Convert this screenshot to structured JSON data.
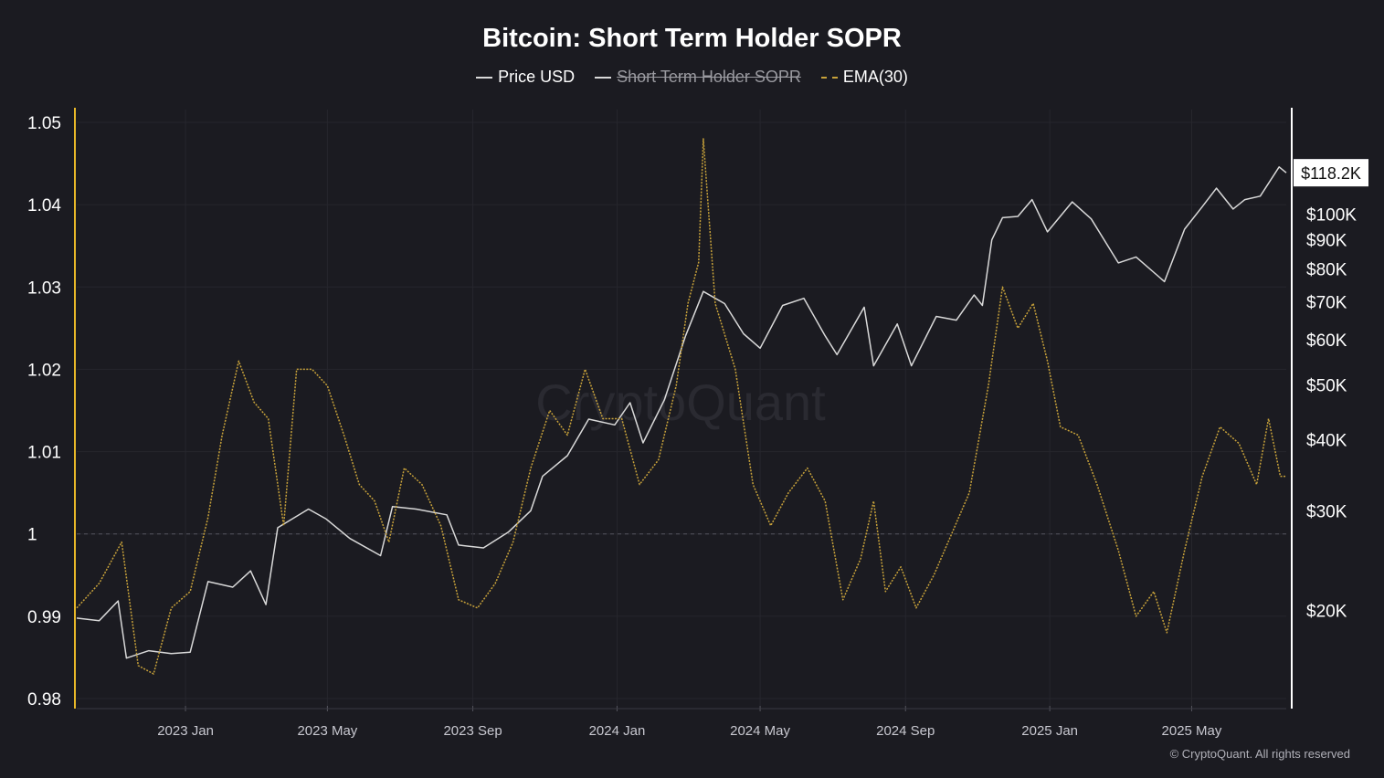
{
  "page": {
    "copyright": "© CryptoQuant. All rights reserved",
    "watermark": "CryptoQuant"
  },
  "chart_data": {
    "type": "line",
    "title": "Bitcoin: Short Term Holder SOPR",
    "legend": [
      {
        "name": "Price USD",
        "color": "#d9d9d9",
        "style": "solid",
        "hidden": false
      },
      {
        "name": "Short Term Holder SOPR",
        "color": "#d9d9d9",
        "style": "solid",
        "hidden": true
      },
      {
        "name": "EMA(30)",
        "color": "#c8a23a",
        "style": "dashed",
        "hidden": false
      }
    ],
    "legend_position": "top-center",
    "x_range": [
      "2022-10-01",
      "2025-07-20"
    ],
    "x_ticks": [
      {
        "date": "2023-01-01",
        "label": "2023 Jan"
      },
      {
        "date": "2023-05-01",
        "label": "2023 May"
      },
      {
        "date": "2023-09-01",
        "label": "2023 Sep"
      },
      {
        "date": "2024-01-01",
        "label": "2024 Jan"
      },
      {
        "date": "2024-05-01",
        "label": "2024 May"
      },
      {
        "date": "2024-09-01",
        "label": "2024 Sep"
      },
      {
        "date": "2025-01-01",
        "label": "2025 Jan"
      },
      {
        "date": "2025-05-01",
        "label": "2025 May"
      }
    ],
    "y_left": {
      "ylim": [
        0.98,
        1.05
      ],
      "ticks": [
        {
          "v": 1.05,
          "label": "1.05"
        },
        {
          "v": 1.04,
          "label": "1.04"
        },
        {
          "v": 1.03,
          "label": "1.03"
        },
        {
          "v": 1.02,
          "label": "1.02"
        },
        {
          "v": 1.01,
          "label": "1.01"
        },
        {
          "v": 1.0,
          "label": "1"
        },
        {
          "v": 0.99,
          "label": "0.99"
        },
        {
          "v": 0.98,
          "label": "0.98"
        }
      ],
      "reference_line": 1.0
    },
    "y_right": {
      "scale": "log",
      "ylim": [
        14000,
        145000
      ],
      "ticks": [
        {
          "v": 100000,
          "label": "$100K"
        },
        {
          "v": 90000,
          "label": "$90K"
        },
        {
          "v": 80000,
          "label": "$80K"
        },
        {
          "v": 70000,
          "label": "$70K"
        },
        {
          "v": 60000,
          "label": "$60K"
        },
        {
          "v": 50000,
          "label": "$50K"
        },
        {
          "v": 40000,
          "label": "$40K"
        },
        {
          "v": 30000,
          "label": "$30K"
        },
        {
          "v": 20000,
          "label": "$20K"
        }
      ],
      "current_value_label": "$118.2K"
    },
    "grid": true,
    "series": [
      {
        "name": "Price USD",
        "axis": "right",
        "color": "#d9d9d9",
        "points": [
          [
            "2022-10-01",
            19400
          ],
          [
            "2022-10-20",
            19200
          ],
          [
            "2022-11-05",
            20800
          ],
          [
            "2022-11-12",
            16500
          ],
          [
            "2022-12-01",
            17000
          ],
          [
            "2022-12-20",
            16800
          ],
          [
            "2023-01-05",
            16900
          ],
          [
            "2023-01-20",
            22500
          ],
          [
            "2023-02-10",
            22000
          ],
          [
            "2023-02-25",
            23500
          ],
          [
            "2023-03-10",
            20500
          ],
          [
            "2023-03-20",
            28000
          ],
          [
            "2023-04-15",
            30200
          ],
          [
            "2023-04-30",
            29000
          ],
          [
            "2023-05-20",
            26800
          ],
          [
            "2023-06-15",
            25000
          ],
          [
            "2023-06-25",
            30500
          ],
          [
            "2023-07-15",
            30200
          ],
          [
            "2023-08-10",
            29500
          ],
          [
            "2023-08-20",
            26100
          ],
          [
            "2023-09-10",
            25800
          ],
          [
            "2023-10-01",
            27500
          ],
          [
            "2023-10-20",
            30000
          ],
          [
            "2023-10-30",
            34500
          ],
          [
            "2023-11-20",
            37500
          ],
          [
            "2023-12-08",
            43500
          ],
          [
            "2023-12-30",
            42500
          ],
          [
            "2024-01-12",
            46500
          ],
          [
            "2024-01-23",
            39500
          ],
          [
            "2024-02-10",
            47000
          ],
          [
            "2024-02-28",
            61000
          ],
          [
            "2024-03-14",
            73000
          ],
          [
            "2024-04-01",
            69500
          ],
          [
            "2024-04-17",
            61500
          ],
          [
            "2024-05-01",
            58000
          ],
          [
            "2024-05-20",
            69000
          ],
          [
            "2024-06-07",
            71000
          ],
          [
            "2024-06-25",
            61000
          ],
          [
            "2024-07-05",
            56500
          ],
          [
            "2024-07-28",
            68500
          ],
          [
            "2024-08-05",
            54000
          ],
          [
            "2024-08-25",
            64000
          ],
          [
            "2024-09-06",
            54000
          ],
          [
            "2024-09-27",
            66000
          ],
          [
            "2024-10-14",
            65000
          ],
          [
            "2024-10-29",
            72000
          ],
          [
            "2024-11-05",
            69000
          ],
          [
            "2024-11-13",
            90000
          ],
          [
            "2024-11-22",
            98500
          ],
          [
            "2024-12-05",
            99000
          ],
          [
            "2024-12-17",
            106000
          ],
          [
            "2024-12-30",
            93000
          ],
          [
            "2025-01-20",
            105000
          ],
          [
            "2025-02-05",
            98000
          ],
          [
            "2025-02-28",
            82000
          ],
          [
            "2025-03-15",
            84000
          ],
          [
            "2025-04-08",
            76000
          ],
          [
            "2025-04-25",
            94000
          ],
          [
            "2025-05-10",
            103000
          ],
          [
            "2025-05-22",
            111000
          ],
          [
            "2025-06-05",
            102000
          ],
          [
            "2025-06-15",
            106000
          ],
          [
            "2025-06-28",
            107500
          ],
          [
            "2025-07-14",
            121000
          ],
          [
            "2025-07-20",
            118200
          ]
        ]
      },
      {
        "name": "EMA(30)",
        "axis": "left",
        "color": "#c8a23a",
        "points": [
          [
            "2022-10-01",
            0.991
          ],
          [
            "2022-10-20",
            0.994
          ],
          [
            "2022-11-08",
            0.999
          ],
          [
            "2022-11-22",
            0.984
          ],
          [
            "2022-12-05",
            0.983
          ],
          [
            "2022-12-20",
            0.991
          ],
          [
            "2023-01-05",
            0.993
          ],
          [
            "2023-01-20",
            1.002
          ],
          [
            "2023-02-01",
            1.012
          ],
          [
            "2023-02-15",
            1.021
          ],
          [
            "2023-02-28",
            1.016
          ],
          [
            "2023-03-12",
            1.014
          ],
          [
            "2023-03-25",
            1.001
          ],
          [
            "2023-04-05",
            1.02
          ],
          [
            "2023-04-18",
            1.02
          ],
          [
            "2023-05-01",
            1.018
          ],
          [
            "2023-05-15",
            1.012
          ],
          [
            "2023-05-28",
            1.006
          ],
          [
            "2023-06-10",
            1.004
          ],
          [
            "2023-06-22",
            0.999
          ],
          [
            "2023-07-05",
            1.008
          ],
          [
            "2023-07-20",
            1.006
          ],
          [
            "2023-08-05",
            1.001
          ],
          [
            "2023-08-20",
            0.992
          ],
          [
            "2023-09-05",
            0.991
          ],
          [
            "2023-09-20",
            0.994
          ],
          [
            "2023-10-05",
            0.999
          ],
          [
            "2023-10-20",
            1.008
          ],
          [
            "2023-11-05",
            1.015
          ],
          [
            "2023-11-20",
            1.012
          ],
          [
            "2023-12-05",
            1.02
          ],
          [
            "2023-12-20",
            1.014
          ],
          [
            "2024-01-05",
            1.014
          ],
          [
            "2024-01-20",
            1.006
          ],
          [
            "2024-02-05",
            1.009
          ],
          [
            "2024-02-20",
            1.018
          ],
          [
            "2024-03-01",
            1.028
          ],
          [
            "2024-03-10",
            1.033
          ],
          [
            "2024-03-14",
            1.048
          ],
          [
            "2024-03-24",
            1.028
          ],
          [
            "2024-04-10",
            1.02
          ],
          [
            "2024-04-25",
            1.006
          ],
          [
            "2024-05-10",
            1.001
          ],
          [
            "2024-05-25",
            1.005
          ],
          [
            "2024-06-10",
            1.008
          ],
          [
            "2024-06-25",
            1.004
          ],
          [
            "2024-07-10",
            0.992
          ],
          [
            "2024-07-25",
            0.997
          ],
          [
            "2024-08-05",
            1.004
          ],
          [
            "2024-08-15",
            0.993
          ],
          [
            "2024-08-28",
            0.996
          ],
          [
            "2024-09-10",
            0.991
          ],
          [
            "2024-09-25",
            0.995
          ],
          [
            "2024-10-10",
            1.0
          ],
          [
            "2024-10-25",
            1.005
          ],
          [
            "2024-11-10",
            1.018
          ],
          [
            "2024-11-22",
            1.03
          ],
          [
            "2024-12-05",
            1.025
          ],
          [
            "2024-12-18",
            1.028
          ],
          [
            "2024-12-30",
            1.021
          ],
          [
            "2025-01-10",
            1.013
          ],
          [
            "2025-01-25",
            1.012
          ],
          [
            "2025-02-10",
            1.006
          ],
          [
            "2025-02-28",
            0.998
          ],
          [
            "2025-03-15",
            0.99
          ],
          [
            "2025-03-30",
            0.993
          ],
          [
            "2025-04-10",
            0.988
          ],
          [
            "2025-04-25",
            0.998
          ],
          [
            "2025-05-10",
            1.007
          ],
          [
            "2025-05-25",
            1.013
          ],
          [
            "2025-06-10",
            1.011
          ],
          [
            "2025-06-25",
            1.006
          ],
          [
            "2025-07-05",
            1.014
          ],
          [
            "2025-07-15",
            1.007
          ],
          [
            "2025-07-20",
            1.007
          ]
        ]
      }
    ]
  }
}
